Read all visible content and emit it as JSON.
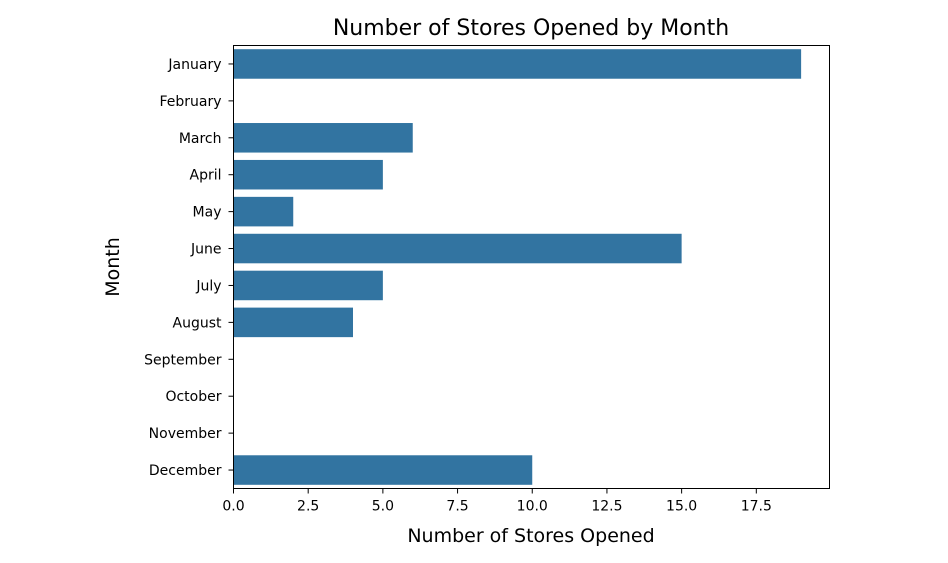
{
  "chart_data": {
    "type": "bar",
    "orientation": "horizontal",
    "title": "Number of Stores Opened by Month",
    "xlabel": "Number of Stores Opened",
    "ylabel": "Month",
    "categories": [
      "January",
      "February",
      "March",
      "April",
      "May",
      "June",
      "July",
      "August",
      "September",
      "October",
      "November",
      "December"
    ],
    "values": [
      19,
      0,
      6,
      5,
      2,
      15,
      5,
      4,
      0,
      0,
      0,
      10
    ],
    "xlim": [
      0,
      19.95
    ],
    "xticks": [
      "0.0",
      "2.5",
      "5.0",
      "7.5",
      "10.0",
      "12.5",
      "15.0",
      "17.5"
    ],
    "xtick_values": [
      0,
      2.5,
      5,
      7.5,
      10,
      12.5,
      15,
      17.5
    ],
    "bar_color": "#3274a1",
    "grid": false,
    "legend": false
  }
}
